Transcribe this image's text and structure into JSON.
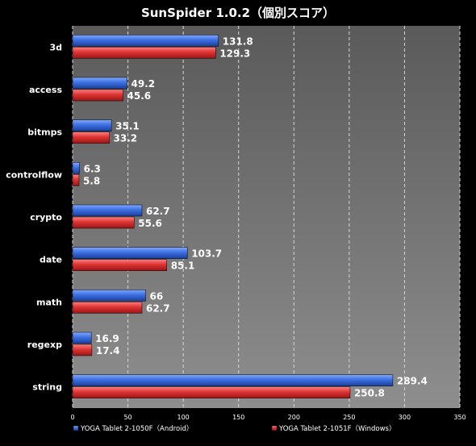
{
  "chart_data": {
    "type": "bar",
    "orientation": "horizontal",
    "title": "SunSpider 1.0.2（個別スコア）",
    "categories": [
      "3d",
      "access",
      "bitmps",
      "controlflow",
      "crypto",
      "date",
      "math",
      "regexp",
      "string"
    ],
    "series": [
      {
        "name": "YOGA Tablet 2-1050F（Android）",
        "color": "#3a6fd8",
        "values": [
          131.8,
          49.2,
          35.1,
          6.3,
          62.7,
          103.7,
          66,
          16.9,
          289.4
        ],
        "labels": [
          "131.8",
          "49.2",
          "35.1",
          "6.3",
          "62.7",
          "103.7",
          "66",
          "16.9",
          "289.4"
        ]
      },
      {
        "name": "YOGA Tablet 2-1051F（Windows）",
        "color": "#d83232",
        "values": [
          129.3,
          45.6,
          33.2,
          5.8,
          55.6,
          85.1,
          62.7,
          17.4,
          250.8
        ],
        "labels": [
          "129.3",
          "45.6",
          "33.2",
          "5.8",
          "55.6",
          "85.1",
          "62.7",
          "17.4",
          "250.8"
        ]
      }
    ],
    "xlim": [
      0,
      350
    ],
    "xticks": [
      "0",
      "50",
      "100",
      "150",
      "200",
      "250",
      "300",
      "350"
    ],
    "grid": true,
    "legend_position": "bottom"
  }
}
